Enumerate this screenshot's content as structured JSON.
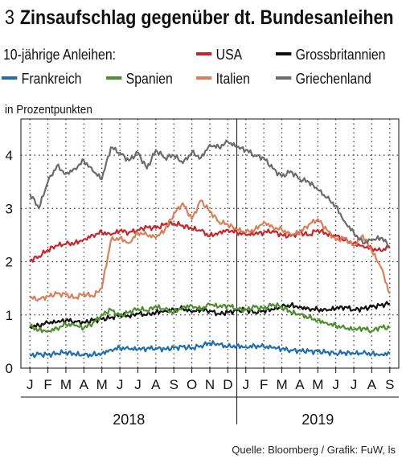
{
  "header": {
    "number": "3",
    "title": "Zinsaufschlag gegenüber dt. Bundesanleihen"
  },
  "legend": {
    "lead": "10-jährige Anleihen:"
  },
  "source": "Quelle: Bloomberg / Grafik: FuW, ls",
  "chart_data": {
    "type": "line",
    "title": "Zinsaufschlag gegenüber dt. Bundesanleihen",
    "ylabel": "in Prozentpunkten",
    "xlabel": "",
    "ylim": [
      0,
      4.5
    ],
    "yticks": [
      0,
      1,
      2,
      3,
      4
    ],
    "x_range": [
      "2018-01",
      "2019-09"
    ],
    "month_ticks": [
      "J",
      "F",
      "M",
      "A",
      "M",
      "J",
      "J",
      "A",
      "S",
      "O",
      "N",
      "D",
      "J",
      "F",
      "M",
      "A",
      "M",
      "J",
      "J",
      "A",
      "S"
    ],
    "years": [
      "2018",
      "2019"
    ],
    "grid": "dotted",
    "legend_position": "top",
    "x": [
      0,
      0.5,
      1,
      1.5,
      2,
      2.5,
      3,
      3.5,
      4,
      4.5,
      5,
      5.5,
      6,
      6.5,
      7,
      7.5,
      8,
      8.5,
      9,
      9.5,
      10,
      10.5,
      11,
      11.5,
      12,
      12.5,
      13,
      13.5,
      14,
      14.5,
      15,
      15.5,
      16,
      16.5,
      17,
      17.5,
      18,
      18.5,
      19,
      19.5,
      20
    ],
    "series": [
      {
        "name": "USA",
        "color": "#c8262b",
        "values": [
          2.02,
          2.1,
          2.22,
          2.3,
          2.33,
          2.35,
          2.42,
          2.5,
          2.55,
          2.5,
          2.58,
          2.55,
          2.6,
          2.65,
          2.63,
          2.7,
          2.72,
          2.68,
          2.62,
          2.58,
          2.48,
          2.55,
          2.6,
          2.55,
          2.5,
          2.52,
          2.55,
          2.58,
          2.5,
          2.48,
          2.55,
          2.5,
          2.6,
          2.52,
          2.48,
          2.4,
          2.35,
          2.3,
          2.25,
          2.2,
          2.28
        ]
      },
      {
        "name": "Grossbritannien",
        "color": "#111111",
        "values": [
          0.78,
          0.8,
          0.85,
          0.86,
          0.9,
          0.88,
          0.86,
          0.9,
          0.92,
          0.95,
          1.0,
          0.98,
          1.02,
          1.0,
          1.05,
          1.08,
          1.1,
          1.12,
          1.05,
          1.1,
          1.08,
          1.02,
          1.05,
          1.08,
          1.1,
          1.05,
          1.08,
          1.1,
          1.15,
          1.18,
          1.15,
          1.12,
          1.1,
          1.08,
          1.12,
          1.15,
          1.1,
          1.12,
          1.15,
          1.18,
          1.22
        ]
      },
      {
        "name": "Frankreich",
        "color": "#1f6fae",
        "values": [
          0.24,
          0.26,
          0.25,
          0.28,
          0.3,
          0.26,
          0.24,
          0.25,
          0.28,
          0.35,
          0.38,
          0.36,
          0.35,
          0.37,
          0.38,
          0.36,
          0.38,
          0.4,
          0.38,
          0.42,
          0.47,
          0.44,
          0.4,
          0.42,
          0.4,
          0.42,
          0.4,
          0.38,
          0.36,
          0.34,
          0.33,
          0.32,
          0.31,
          0.3,
          0.28,
          0.29,
          0.27,
          0.28,
          0.27,
          0.26,
          0.28
        ]
      },
      {
        "name": "Spanien",
        "color": "#4e8f2f",
        "values": [
          0.78,
          0.72,
          0.7,
          0.75,
          0.82,
          0.8,
          0.75,
          0.85,
          1.0,
          1.1,
          0.98,
          1.05,
          1.12,
          1.08,
          1.15,
          1.1,
          1.05,
          1.15,
          1.18,
          1.1,
          1.2,
          1.15,
          1.18,
          1.12,
          1.1,
          1.15,
          1.12,
          1.2,
          1.15,
          1.05,
          1.0,
          0.95,
          0.9,
          0.85,
          0.8,
          0.75,
          0.72,
          0.75,
          0.7,
          0.78,
          0.75
        ]
      },
      {
        "name": "Italien",
        "color": "#d9805a",
        "values": [
          1.32,
          1.3,
          1.35,
          1.4,
          1.38,
          1.32,
          1.4,
          1.35,
          1.5,
          2.4,
          2.45,
          2.35,
          2.55,
          2.5,
          2.45,
          2.6,
          2.9,
          3.1,
          2.8,
          3.15,
          2.95,
          2.75,
          2.7,
          2.6,
          2.55,
          2.6,
          2.75,
          2.65,
          2.6,
          2.5,
          2.55,
          2.7,
          2.8,
          2.6,
          2.4,
          2.45,
          2.3,
          2.5,
          2.2,
          1.9,
          1.4
        ]
      },
      {
        "name": "Griechenland",
        "color": "#6b6b6b",
        "values": [
          3.28,
          3.0,
          3.5,
          3.8,
          3.65,
          3.75,
          3.9,
          3.7,
          3.55,
          4.15,
          4.05,
          3.9,
          4.05,
          3.75,
          4.1,
          3.95,
          4.0,
          3.85,
          4.05,
          3.95,
          4.2,
          4.15,
          4.25,
          4.15,
          4.1,
          4.0,
          3.95,
          3.75,
          3.6,
          3.7,
          3.55,
          3.5,
          3.35,
          3.2,
          3.05,
          2.75,
          2.55,
          2.35,
          2.4,
          2.45,
          2.3
        ]
      }
    ]
  }
}
